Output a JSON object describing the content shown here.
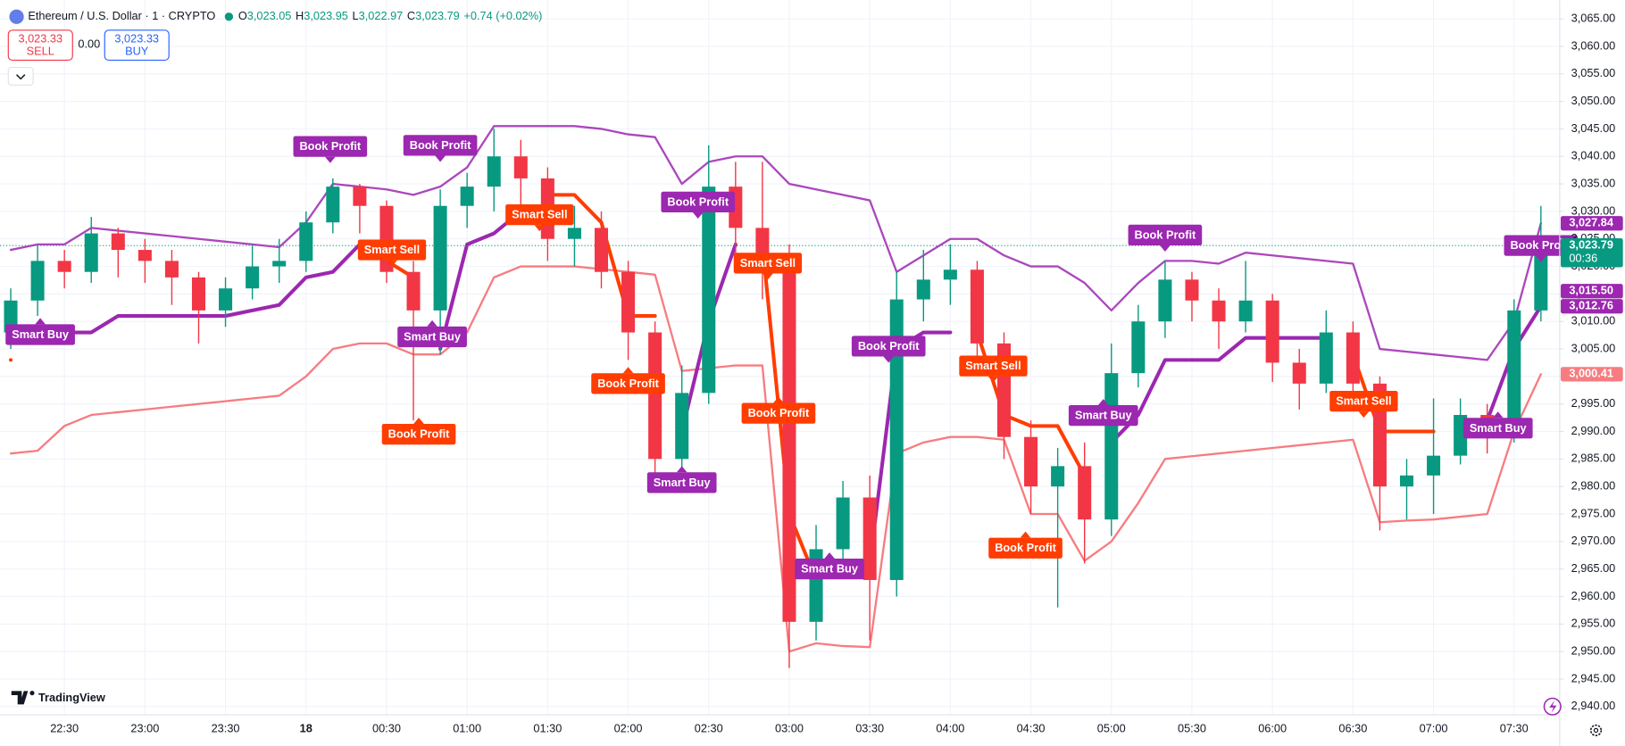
{
  "header": {
    "symbol": "Ethereum / U.S. Dollar · 1 · CRYPTO",
    "ohlc": [
      {
        "key": "O",
        "value": "3,023.05"
      },
      {
        "key": "H",
        "value": "3,023.95"
      },
      {
        "key": "L",
        "value": "3,022.97"
      },
      {
        "key": "C",
        "value": "3,023.79"
      }
    ],
    "change": "+0.74 (+0.02%)"
  },
  "trade": {
    "sell_price": "3,023.33",
    "sell": "SELL",
    "spread": "0.00",
    "buy_price": "3,023.33",
    "buy": "BUY"
  },
  "branding": "TradingView",
  "chart_data": {
    "type": "candlestick",
    "up_color": "#089981",
    "down_color": "#f23645",
    "grid": true,
    "xlim": [
      "22:06",
      "07:47"
    ],
    "xticks": [
      "22:30",
      "23:00",
      "23:30",
      {
        "value": "00:00",
        "label": "18"
      },
      "00:30",
      "01:00",
      "01:30",
      "02:00",
      "02:30",
      "03:00",
      "03:30",
      "04:00",
      "04:30",
      "05:00",
      "05:30",
      "06:00",
      "06:30",
      "07:00",
      "07:30"
    ],
    "ylim": [
      2938.5,
      3068.4
    ],
    "yticks": [
      {
        "value": 2940,
        "label": "2,940.00"
      },
      {
        "value": 2945,
        "label": "2,945.00"
      },
      {
        "value": 2950,
        "label": "2,950.00"
      },
      {
        "value": 2955,
        "label": "2,955.00"
      },
      {
        "value": 2960,
        "label": "2,960.00"
      },
      {
        "value": 2965,
        "label": "2,965.00"
      },
      {
        "value": 2970,
        "label": "2,970.00"
      },
      {
        "value": 2975,
        "label": "2,975.00"
      },
      {
        "value": 2980,
        "label": "2,980.00"
      },
      {
        "value": 2985,
        "label": "2,985.00"
      },
      {
        "value": 2990,
        "label": "2,990.00"
      },
      {
        "value": 2995,
        "label": "2,995.00"
      },
      {
        "value": 3000,
        "label": "3,000.00"
      },
      {
        "value": 3005,
        "label": "3,005.00"
      },
      {
        "value": 3010,
        "label": "3,010.00"
      },
      {
        "value": 3015,
        "label": "3,015.00"
      },
      {
        "value": 3020,
        "label": "3,020.00"
      },
      {
        "value": 3025,
        "label": "3,025.00"
      },
      {
        "value": 3030,
        "label": "3,030.00"
      },
      {
        "value": 3035,
        "label": "3,035.00"
      },
      {
        "value": 3040,
        "label": "3,040.00"
      },
      {
        "value": 3045,
        "label": "3,045.00"
      },
      {
        "value": 3050,
        "label": "3,050.00"
      },
      {
        "value": 3055,
        "label": "3,055.00"
      },
      {
        "value": 3060,
        "label": "3,060.00"
      },
      {
        "value": 3065,
        "label": "3,065.00"
      }
    ],
    "x": [
      "22:10",
      "22:20",
      "22:30",
      "22:40",
      "22:50",
      "23:00",
      "23:10",
      "23:20",
      "23:30",
      "23:40",
      "23:50",
      "00:00",
      "00:10",
      "00:20",
      "00:30",
      "00:40",
      "00:50",
      "01:00",
      "01:10",
      "01:20",
      "01:30",
      "01:40",
      "01:50",
      "02:00",
      "02:10",
      "02:20",
      "02:30",
      "02:40",
      "02:50",
      "03:00",
      "03:10",
      "03:20",
      "03:30",
      "03:40",
      "03:50",
      "04:00",
      "04:10",
      "04:20",
      "04:30",
      "04:40",
      "04:50",
      "05:00",
      "05:10",
      "05:20",
      "05:30",
      "05:40",
      "05:50",
      "06:00",
      "06:10",
      "06:20",
      "06:30",
      "06:40",
      "06:50",
      "07:00",
      "07:10",
      "07:20",
      "07:30",
      "07:40"
    ],
    "candles": {
      "open": [
        3008,
        3013.8,
        3021,
        3019,
        3026,
        3023,
        3021,
        3018,
        3012,
        3016,
        3020,
        3021,
        3028,
        3034.5,
        3031,
        3019,
        3012,
        3031,
        3034.5,
        3040,
        3036,
        3025,
        3027,
        3019,
        3008,
        2985,
        2997,
        3034.5,
        3027,
        3021,
        2955.4,
        2968.6,
        2978,
        2963,
        3014,
        3017.6,
        3019.4,
        3006,
        2989,
        2980,
        2983.7,
        2974,
        3000.6,
        3010,
        3017.6,
        3013.8,
        3010,
        3013.8,
        3002.5,
        2998.7,
        3008,
        2998.7,
        2980,
        2982,
        2985.6,
        2993,
        2989,
        3012
      ],
      "high": [
        3016,
        3024,
        3023,
        3029,
        3027,
        3025,
        3023,
        3019,
        3018,
        3024,
        3025,
        3030,
        3036,
        3035,
        3032,
        3021,
        3034,
        3037,
        3045,
        3043,
        3038,
        3031,
        3030,
        3021,
        3010,
        3002,
        3042,
        3039,
        3039,
        3024,
        2973,
        2981,
        2982,
        3019,
        3023,
        3024,
        3021,
        3008,
        2992,
        2987,
        2988,
        3006,
        3013,
        3021,
        3019,
        3016,
        3021,
        3015,
        3005,
        3012,
        3010,
        3000,
        2985,
        2996,
        2996,
        2995,
        3014,
        3031
      ],
      "low": [
        3005,
        3011,
        3016,
        3017,
        3018,
        3017,
        3013,
        3006,
        3009,
        3014,
        3017,
        3019,
        3026,
        3026,
        3017,
        2992,
        3004,
        3027,
        3030,
        3030,
        3021,
        3020,
        3016,
        3003,
        2979,
        2983,
        2995,
        3022,
        3014,
        2947,
        2952,
        2965,
        2952,
        2960,
        3010,
        3013,
        3003,
        2985,
        2975,
        2958,
        2966,
        2971,
        2998,
        3007,
        3010,
        3005,
        3008,
        2999,
        2994,
        2997,
        2995,
        2972,
        2974,
        2975,
        2984,
        2986,
        2988,
        3010
      ],
      "close": [
        3013.8,
        3021,
        3019,
        3026,
        3023,
        3021,
        3018,
        3012,
        3016,
        3020,
        3021,
        3028,
        3034.5,
        3031,
        3019,
        3012,
        3031,
        3034.5,
        3040,
        3036,
        3025,
        3027,
        3019,
        3008,
        2985,
        2997,
        3034.5,
        3027,
        3021,
        2955.4,
        2968.6,
        2978,
        2963,
        3014,
        3017.6,
        3019.4,
        3006,
        2989,
        2980,
        2983.7,
        2974,
        3000.6,
        3010,
        3017.6,
        3013.8,
        3010,
        3013.8,
        3002.5,
        2998.7,
        3008,
        2998.7,
        2980,
        2982,
        2985.6,
        2993,
        2989,
        3012,
        3023.79
      ]
    },
    "series": [
      {
        "color": "#ab47bc",
        "width": 2,
        "values": [
          3023,
          3024,
          3024,
          3027,
          3026.5,
          3026,
          3025.5,
          3025,
          3024.5,
          3024,
          3023.5,
          3028,
          3035,
          3034.5,
          3034,
          3033,
          3034.5,
          3038,
          3045.5,
          3045.5,
          3045.5,
          3045.5,
          3045,
          3044,
          3043.5,
          3035,
          3039,
          3040,
          3040,
          3035,
          3034,
          3033,
          3032,
          3019,
          3022,
          3025,
          3025,
          3022,
          3020,
          3020,
          3017,
          3012,
          3017,
          3021,
          3021,
          3020.5,
          3022.5,
          3022,
          3021.5,
          3021,
          3020.5,
          3005,
          3004.5,
          3004,
          3003.5,
          3003,
          3010,
          3027.84
        ]
      },
      {
        "color": "#f77c80",
        "width": 2,
        "values": [
          2986,
          2986.5,
          2991,
          2993,
          2993.5,
          2994,
          2994.5,
          2995,
          2995.5,
          2996,
          2996.5,
          3000,
          3005,
          3006,
          3006,
          3004,
          3004,
          3008,
          3018,
          3020,
          3020,
          3020,
          3019.5,
          3019,
          3018.5,
          3001,
          3001.5,
          3002,
          3002,
          2950,
          2951.5,
          2951,
          2950.8,
          2986,
          2988,
          2989,
          2989,
          2988.5,
          2975,
          2975,
          2966.5,
          2970,
          2977,
          2985,
          2985.5,
          2986,
          2986.5,
          2987,
          2987.5,
          2988,
          2988.5,
          2973.5,
          2973.8,
          2974,
          2974.5,
          2975,
          2990,
          3000.41
        ]
      },
      {
        "color": "#9c27b0",
        "width": 3.5,
        "values": [
          null,
          3007,
          3008,
          3008,
          3011,
          3011,
          3011,
          3011,
          3011,
          3012,
          3013,
          3018,
          3019,
          3024,
          null,
          null,
          3005,
          3024,
          3026,
          3030,
          null,
          null,
          null,
          null,
          null,
          2990,
          3010,
          3024,
          null,
          null,
          null,
          2966,
          2966,
          3005,
          3008,
          3008,
          null,
          null,
          null,
          null,
          null,
          2988,
          2993,
          3003,
          3003,
          3003,
          3007,
          3007,
          3007,
          3007,
          null,
          null,
          null,
          null,
          2989,
          2992,
          3005,
          3012.76
        ]
      },
      {
        "color": "#ff3d00",
        "width": 3.5,
        "values": [
          3003,
          null,
          null,
          null,
          null,
          null,
          null,
          null,
          null,
          null,
          null,
          null,
          null,
          null,
          3021,
          3018,
          null,
          null,
          null,
          null,
          3033,
          3033,
          3028,
          3011,
          3011,
          null,
          null,
          null,
          3024,
          2975,
          2963,
          null,
          null,
          null,
          null,
          null,
          3008,
          2993,
          2991,
          2991,
          2982,
          null,
          null,
          null,
          null,
          null,
          null,
          null,
          null,
          null,
          3004,
          2990,
          2990,
          2990,
          null,
          null,
          null,
          null
        ]
      }
    ],
    "annotations": [
      {
        "text": "Smart Buy",
        "time": "22:21",
        "price": 3007.6,
        "color": "#9c27b0",
        "pointer": "up"
      },
      {
        "text": "Book Profit",
        "time": "00:09",
        "price": 3041.8,
        "color": "#9c27b0",
        "pointer": "down"
      },
      {
        "text": "Smart Sell",
        "time": "00:32",
        "price": 3023,
        "color": "#ff3d00",
        "pointer": "down"
      },
      {
        "text": "Book Profit",
        "time": "00:50",
        "price": 3042,
        "color": "#9c27b0",
        "pointer": "down"
      },
      {
        "text": "Smart Buy",
        "time": "00:47",
        "price": 3007.2,
        "color": "#9c27b0",
        "pointer": "up"
      },
      {
        "text": "Book Profit",
        "time": "00:42",
        "price": 2989.5,
        "color": "#ff3d00",
        "pointer": "up"
      },
      {
        "text": "Smart Sell",
        "time": "01:27",
        "price": 3029.4,
        "color": "#ff3d00",
        "pointer": "down"
      },
      {
        "text": "Book Profit",
        "time": "02:26",
        "price": 3031.7,
        "color": "#9c27b0",
        "pointer": "down"
      },
      {
        "text": "Book Profit",
        "time": "02:00",
        "price": 2998.7,
        "color": "#ff3d00",
        "pointer": "up"
      },
      {
        "text": "Smart Buy",
        "time": "02:20",
        "price": 2980.7,
        "color": "#9c27b0",
        "pointer": "up"
      },
      {
        "text": "Smart Sell",
        "time": "02:52",
        "price": 3020.6,
        "color": "#ff3d00",
        "pointer": "down"
      },
      {
        "text": "Book Profit",
        "time": "02:56",
        "price": 2993.3,
        "color": "#ff3d00",
        "pointer": "up"
      },
      {
        "text": "Smart Buy",
        "time": "03:15",
        "price": 2965,
        "color": "#9c27b0",
        "pointer": "up"
      },
      {
        "text": "Book Profit",
        "time": "03:37",
        "price": 3005.5,
        "color": "#9c27b0",
        "pointer": "down"
      },
      {
        "text": "Smart Sell",
        "time": "04:16",
        "price": 3001.9,
        "color": "#ff3d00",
        "pointer": "down"
      },
      {
        "text": "Book Profit",
        "time": "04:28",
        "price": 2968.8,
        "color": "#ff3d00",
        "pointer": "up"
      },
      {
        "text": "Smart Buy",
        "time": "04:57",
        "price": 2992.9,
        "color": "#9c27b0",
        "pointer": "up"
      },
      {
        "text": "Book Profit",
        "time": "05:20",
        "price": 3025.7,
        "color": "#9c27b0",
        "pointer": "down"
      },
      {
        "text": "Smart Sell",
        "time": "06:34",
        "price": 2995.5,
        "color": "#ff3d00",
        "pointer": "down"
      },
      {
        "text": "Smart Buy",
        "time": "07:24",
        "price": 2990.6,
        "color": "#9c27b0",
        "pointer": "up"
      },
      {
        "text": "Book Profit",
        "time": "07:40",
        "price": 3023.8,
        "color": "#9c27b0",
        "pointer": "down"
      }
    ],
    "price_labels": [
      {
        "value": 3027.84,
        "label": "3,027.84",
        "color": "#9c27b0"
      },
      {
        "value": 3023.79,
        "label": "3,023.79",
        "color": "#089981",
        "countdown": "00:36"
      },
      {
        "value": 3015.5,
        "label": "3,015.50",
        "color": "#9c27b0"
      },
      {
        "value": 3012.76,
        "label": "3,012.76",
        "color": "#9c27b0"
      },
      {
        "value": 3000.41,
        "label": "3,000.41",
        "color": "#f77c80"
      }
    ]
  }
}
